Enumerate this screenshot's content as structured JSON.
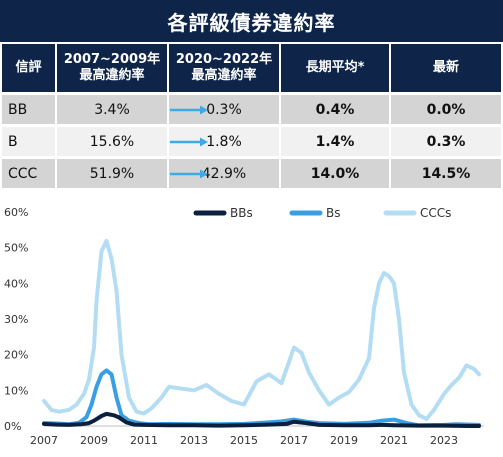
{
  "title": "各評級債券違約率",
  "table": {
    "headers": [
      "信評",
      "2007~2009年\n最高違約率",
      "2020~2022年\n最高違約率",
      "長期平均*",
      "最新"
    ],
    "rows": [
      {
        "rating": "BB",
        "peak_0709": "3.4%",
        "peak_2022": "0.3%",
        "long_avg": "0.4%",
        "latest": "0.0%"
      },
      {
        "rating": "B",
        "peak_0709": "15.6%",
        "peak_2022": "1.8%",
        "long_avg": "1.4%",
        "latest": "0.3%"
      },
      {
        "rating": "CCC",
        "peak_0709": "51.9%",
        "peak_2022": "42.9%",
        "long_avg": "14.0%",
        "latest": "14.5%"
      }
    ]
  },
  "colors": {
    "header_navy": "#0e2549",
    "arrow_blue": "#3fa9e6",
    "series_bb": "#0b1f3f",
    "series_b": "#3a9fe2",
    "series_ccc": "#b4dcf3"
  },
  "chart_data": {
    "type": "line",
    "xlim": [
      2007,
      2024.6
    ],
    "ylim": [
      0,
      60
    ],
    "y_ticks": [
      0,
      10,
      20,
      30,
      40,
      50,
      60
    ],
    "y_tick_labels": [
      "0%",
      "10%",
      "20%",
      "30%",
      "40%",
      "50%",
      "60%"
    ],
    "x_ticks": [
      2007,
      2009,
      2011,
      2013,
      2015,
      2017,
      2019,
      2021,
      2023
    ],
    "x_tick_labels": [
      "2007",
      "2009",
      "2011",
      "2013",
      "2015",
      "2017",
      "2019",
      "2021",
      "2023"
    ],
    "legend": "top",
    "series": [
      {
        "name": "BBs",
        "color": "#0b1f3f",
        "x": [
          2007.0,
          2007.5,
          2008.0,
          2008.5,
          2008.8,
          2009.0,
          2009.3,
          2009.5,
          2009.8,
          2010.0,
          2010.3,
          2010.6,
          2011.0,
          2012.0,
          2013.0,
          2014.0,
          2015.0,
          2016.0,
          2016.7,
          2017.0,
          2017.5,
          2018.0,
          2019.0,
          2020.0,
          2020.5,
          2021.0,
          2022.0,
          2023.0,
          2024.0,
          2024.4
        ],
        "y": [
          0.6,
          0.4,
          0.3,
          0.5,
          0.8,
          1.5,
          2.8,
          3.4,
          3.0,
          2.4,
          1.0,
          0.4,
          0.3,
          0.2,
          0.2,
          0.1,
          0.2,
          0.4,
          0.6,
          1.2,
          0.8,
          0.3,
          0.2,
          0.2,
          0.3,
          0.2,
          0.1,
          0.1,
          0.0,
          0.0
        ]
      },
      {
        "name": "Bs",
        "color": "#3a9fe2",
        "x": [
          2007.0,
          2007.5,
          2008.0,
          2008.4,
          2008.7,
          2008.9,
          2009.1,
          2009.3,
          2009.5,
          2009.7,
          2009.9,
          2010.1,
          2010.4,
          2010.8,
          2011.2,
          2012.0,
          2013.0,
          2014.0,
          2015.0,
          2016.0,
          2016.5,
          2017.0,
          2017.5,
          2018.0,
          2019.0,
          2020.0,
          2020.5,
          2021.0,
          2021.5,
          2022.0,
          2023.0,
          2023.5,
          2024.0,
          2024.4
        ],
        "y": [
          0.8,
          0.7,
          0.5,
          0.9,
          2.5,
          6.0,
          11.0,
          14.5,
          15.6,
          14.5,
          8.0,
          3.0,
          1.5,
          0.8,
          0.5,
          0.6,
          0.5,
          0.5,
          0.6,
          1.0,
          1.3,
          1.8,
          1.2,
          0.8,
          0.6,
          0.9,
          1.5,
          1.8,
          0.8,
          0.2,
          0.3,
          0.5,
          0.4,
          0.3
        ]
      },
      {
        "name": "CCCs",
        "color": "#b4dcf3",
        "x": [
          2007.0,
          2007.3,
          2007.6,
          2008.0,
          2008.3,
          2008.6,
          2008.8,
          2009.0,
          2009.1,
          2009.3,
          2009.5,
          2009.7,
          2009.9,
          2010.1,
          2010.4,
          2010.7,
          2011.0,
          2011.3,
          2011.7,
          2012.0,
          2012.5,
          2013.0,
          2013.5,
          2014.0,
          2014.5,
          2015.0,
          2015.5,
          2016.0,
          2016.5,
          2016.8,
          2017.0,
          2017.3,
          2017.6,
          2018.0,
          2018.4,
          2018.8,
          2019.2,
          2019.6,
          2020.0,
          2020.2,
          2020.4,
          2020.6,
          2020.8,
          2021.0,
          2021.2,
          2021.4,
          2021.7,
          2022.0,
          2022.3,
          2022.6,
          2023.0,
          2023.3,
          2023.6,
          2023.9,
          2024.2,
          2024.4
        ],
        "y": [
          7.0,
          4.5,
          4.0,
          4.5,
          6.0,
          9.0,
          13.0,
          22.0,
          35.0,
          49.0,
          51.9,
          47.0,
          38.0,
          20.0,
          8.0,
          4.0,
          3.5,
          5.0,
          8.0,
          11.0,
          10.5,
          10.0,
          11.5,
          9.0,
          7.0,
          6.0,
          12.5,
          14.5,
          12.0,
          18.0,
          22.0,
          20.5,
          15.0,
          10.0,
          6.0,
          8.0,
          9.5,
          13.0,
          19.0,
          33.0,
          40.0,
          42.9,
          42.0,
          40.0,
          30.0,
          15.0,
          6.0,
          3.0,
          2.0,
          4.5,
          9.0,
          11.5,
          13.5,
          17.0,
          16.0,
          14.5
        ]
      }
    ]
  }
}
